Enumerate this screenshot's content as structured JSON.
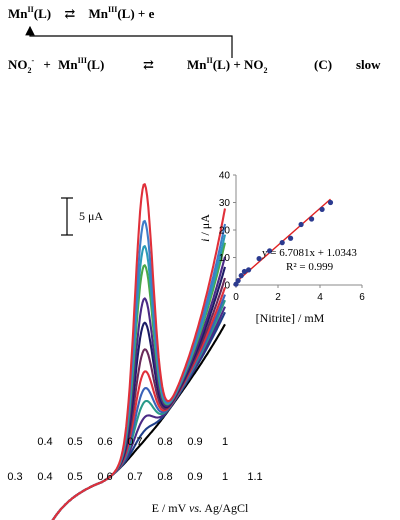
{
  "scheme": {
    "r1_left_base": "Mn",
    "r1_left_ox": "II",
    "r1_left_lig": "(L)",
    "r1_arrows": "⇄",
    "r1_right_base": "Mn",
    "r1_right_ox": "III",
    "r1_right_rest": "(L) + e",
    "r2_a": "NO",
    "r2_a_sub": "2",
    "r2_a_sup": "-",
    "r2_plus": "+",
    "r2_b_base": "Mn",
    "r2_b_ox": "III",
    "r2_b_lig": "(L)",
    "r2_arrows": "⇄",
    "r2_c_base": "Mn",
    "r2_c_ox": "II",
    "r2_c_rest": "(L) +  NO",
    "r2_c_sub": "2",
    "r2_label": "(C)",
    "r2_rate": "slow"
  },
  "scale_bar": {
    "label": "5 μA",
    "value_uA": 5
  },
  "chart_data": [
    {
      "type": "line",
      "xlabel_pre": "E / mV ",
      "xlabel_italic": "vs.",
      "xlabel_post": " Ag/AgCl",
      "x_ticks": [
        "0.3",
        "0.4",
        "0.5",
        "0.6",
        "0.7",
        "0.8",
        "0.9",
        "1",
        "1.1"
      ],
      "axis_marks": [
        "0.4",
        "0.5",
        "0.6",
        "0.7",
        "0.8",
        "0.9",
        "1"
      ],
      "xlim": [
        0.3,
        1.1
      ],
      "peak_potential": 0.73,
      "series": [
        {
          "color": "#000000",
          "peak_uA": 0.3
        },
        {
          "color": "#1f3f8a",
          "peak_uA": 1.6
        },
        {
          "color": "#4b2a86",
          "peak_uA": 3.4
        },
        {
          "color": "#2a9a8a",
          "peak_uA": 5.5
        },
        {
          "color": "#3a62b8",
          "peak_uA": 7.3
        },
        {
          "color": "#e0303a",
          "peak_uA": 9.6
        },
        {
          "color": "#6a2a5a",
          "peak_uA": 12.6
        },
        {
          "color": "#1c1c66",
          "peak_uA": 16.2
        },
        {
          "color": "#4b2a86",
          "peak_uA": 19.5
        },
        {
          "color": "#4aa84a",
          "peak_uA": 24.0
        },
        {
          "color": "#2a9ab8",
          "peak_uA": 26.6
        },
        {
          "color": "#3f7cc8",
          "peak_uA": 30.0
        },
        {
          "color": "#e0303a",
          "peak_uA": 35.0
        }
      ]
    },
    {
      "type": "scatter",
      "xlabel": "[Nitrite] / mM",
      "ylabel_italic": "i",
      "ylabel_rest": " / μA",
      "xlim": [
        0,
        6
      ],
      "ylim": [
        0,
        40
      ],
      "x_ticks": [
        "0",
        "2",
        "4",
        "6"
      ],
      "y_ticks": [
        "0",
        "10",
        "20",
        "30",
        "40"
      ],
      "equation": "y = 6.7081x + 1.0343",
      "r2": "R² = 0.999",
      "fit": {
        "slope": 6.7081,
        "intercept": 1.0343
      },
      "point_color": "#2b3a8f",
      "line_color": "#e02020",
      "x": [
        0.0,
        0.1,
        0.25,
        0.4,
        0.6,
        1.1,
        1.6,
        2.2,
        2.6,
        3.1,
        3.6,
        4.1,
        4.5
      ],
      "y": [
        0.3,
        1.6,
        3.4,
        4.9,
        5.5,
        9.6,
        12.4,
        15.4,
        17.0,
        22.0,
        24.0,
        27.5,
        30.0
      ]
    }
  ]
}
